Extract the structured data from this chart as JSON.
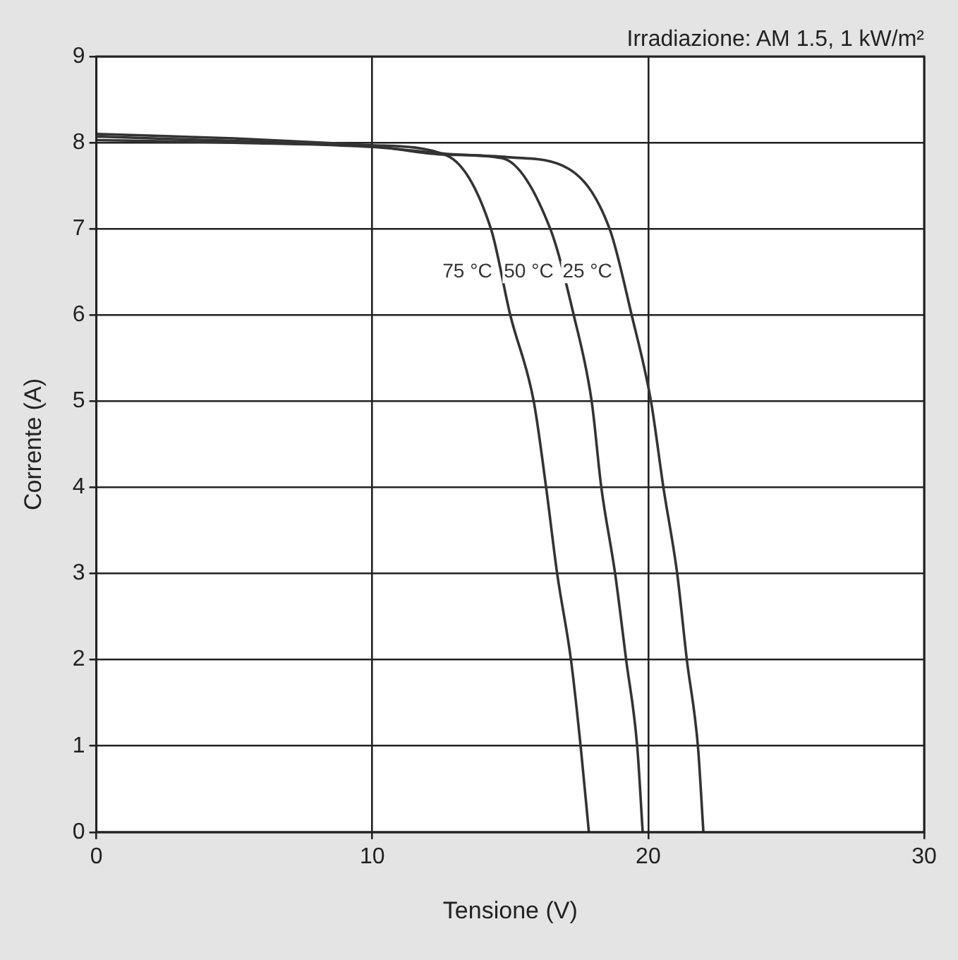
{
  "chart_data": {
    "type": "line",
    "xlabel": "Tensione (V)",
    "ylabel": "Corrente (A)",
    "annotations": [
      "Irradiazione: AM 1.5, 1 kW/m²"
    ],
    "xlim": [
      0,
      30
    ],
    "xticks": [
      0,
      10,
      20,
      30
    ],
    "ylim": [
      0,
      9
    ],
    "yticks": [
      0,
      1,
      2,
      3,
      4,
      5,
      6,
      7,
      8,
      9
    ],
    "grid": true,
    "legend": false,
    "marker": "none",
    "line_style": "solid",
    "series": [
      {
        "name": "75 °C",
        "color": "#333333",
        "x": [
          0,
          5,
          10,
          12.7,
          14.3,
          15,
          15.85,
          16.3,
          16.7,
          17.2,
          17.55,
          17.85
        ],
        "values": [
          8.1,
          8.05,
          7.97,
          7.85,
          7,
          6,
          5,
          4,
          3,
          2,
          1,
          0
        ]
      },
      {
        "name": "50 °C",
        "color": "#333333",
        "x": [
          0,
          5,
          10,
          12.7,
          14.7,
          16.45,
          17.3,
          17.95,
          18.3,
          18.8,
          19.2,
          19.6,
          19.8
        ],
        "values": [
          8.07,
          8.02,
          7.96,
          7.86,
          7.82,
          7,
          6,
          5,
          4,
          3,
          2,
          1,
          0
        ]
      },
      {
        "name": "25 °C",
        "color": "#333333",
        "x": [
          0,
          5,
          10,
          12.7,
          15,
          17.1,
          18.6,
          19.4,
          20.1,
          20.55,
          21.05,
          21.4,
          21.8,
          22
        ],
        "values": [
          8.03,
          8,
          7.95,
          7.87,
          7.83,
          7.7,
          7,
          6,
          5,
          4,
          3,
          2,
          1,
          0
        ]
      }
    ]
  }
}
